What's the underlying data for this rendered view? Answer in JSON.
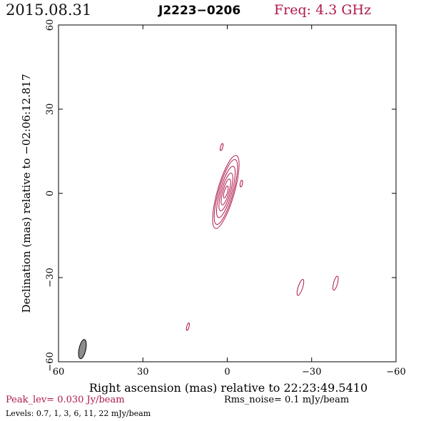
{
  "header": {
    "date": "2015.08.31",
    "source": "J2223−0206",
    "frequency": "Freq: 4.3 GHz"
  },
  "footer": {
    "peak": "Peak_lev=  0.030 Jy/beam",
    "rms": "Rms_noise=   0.1 mJy/beam",
    "levels": "Levels: 0.7,    1,    3,    6,   11,   22 mJy/beam"
  },
  "colors": {
    "contour": "#b0184a",
    "beam_fill": "#8c8c8c",
    "axis": "#000000"
  },
  "chart_data": {
    "type": "contour",
    "xlabel": "Right ascension (mas) relative to 22:23:49.5410",
    "ylabel": "Declination (mas) relative to −02:06:12.817",
    "xlim": [
      60,
      -60
    ],
    "ylim": [
      -60,
      60
    ],
    "x_ticks": [
      60,
      30,
      0,
      -30,
      -60
    ],
    "y_ticks": [
      60,
      30,
      0,
      -30,
      -60
    ],
    "x_tick_labels": [
      "60",
      "30",
      "0",
      "−30",
      "−60"
    ],
    "y_tick_labels": [
      "60",
      "30",
      "0",
      "−30",
      "−60"
    ],
    "contour_levels_mjy": [
      0.7,
      1,
      3,
      6,
      11,
      22
    ],
    "core": {
      "x": 0.5,
      "y": 0.5,
      "pa_deg": 16
    },
    "core_contours": [
      {
        "level": 0.7,
        "a": 13.5,
        "b": 3.0
      },
      {
        "level": 1,
        "a": 12.0,
        "b": 2.6
      },
      {
        "level": 3,
        "a": 9.5,
        "b": 2.1
      },
      {
        "level": 6,
        "a": 7.0,
        "b": 1.6
      },
      {
        "level": 11,
        "a": 4.8,
        "b": 1.1
      },
      {
        "level": 22,
        "a": 2.2,
        "b": 0.6
      }
    ],
    "islands": [
      {
        "x": 2.0,
        "y": 16.5,
        "a": 1.3,
        "b": 0.4,
        "pa_deg": 15
      },
      {
        "x": -5.0,
        "y": 3.5,
        "a": 1.2,
        "b": 0.4,
        "pa_deg": 10
      },
      {
        "x": -26.0,
        "y": -33.5,
        "a": 3.0,
        "b": 0.8,
        "pa_deg": 18
      },
      {
        "x": -38.5,
        "y": -32.0,
        "a": 2.6,
        "b": 0.7,
        "pa_deg": 15
      },
      {
        "x": 14.0,
        "y": -47.5,
        "a": 1.4,
        "b": 0.4,
        "pa_deg": 15
      }
    ],
    "beam": {
      "x": 51.5,
      "y": -55.5,
      "major": 7.0,
      "minor": 2.4,
      "pa_deg": 12
    }
  }
}
